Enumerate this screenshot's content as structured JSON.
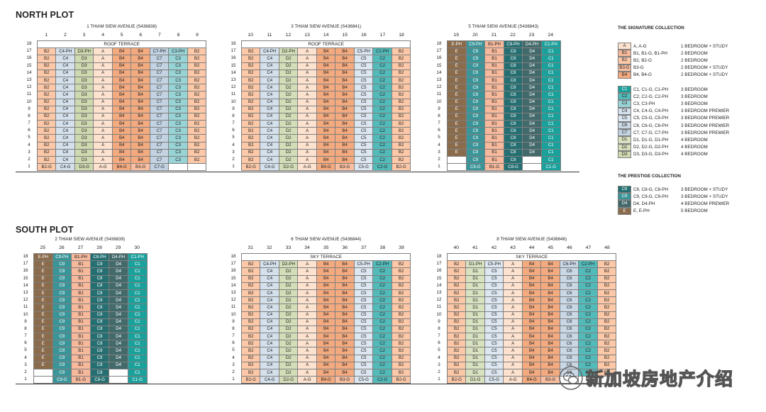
{
  "north_title": "NORTH PLOT",
  "south_title": "SOUTH PLOT",
  "colors": {
    "A": "#fde2cf",
    "B1": "#f7b99c",
    "B2": "#fcc8a7",
    "B3": "#f9bfa0",
    "B4": "#f4aa7f",
    "C1": "#1aa19c",
    "C2": "#52bbba",
    "C3": "#98d3d6",
    "C4": "#d4e1ec",
    "C5": "#dce7f1",
    "C6": "#cad8e6",
    "C7": "#c3d3e3",
    "D1": "#d8e2c0",
    "D2": "#d3deb8",
    "D3": "#cfd9b0",
    "C8": "#256f72",
    "C9": "#3a9599",
    "D4": "#436a6b",
    "E": "#8a6b4b",
    "T": "#ffffff"
  },
  "blocks": [
    {
      "id": "block-1",
      "address": "1 THIAM SIEW AVENUE (S436838)",
      "stacks": [
        "1",
        "2",
        "3",
        "4",
        "5",
        "6",
        "7",
        "8",
        "9"
      ],
      "terrace": "ROOF TERRACE",
      "top_row": [
        "B2",
        "C4-PH",
        "D3-PH",
        "A",
        "B4",
        "B4",
        "C7-PH",
        "C3-PH",
        "B2"
      ],
      "body": [
        "B2",
        "C4",
        "D3",
        "A",
        "B4",
        "B4",
        "C7",
        "C3",
        "B2"
      ],
      "body_floors": [
        16,
        15,
        14,
        13,
        12,
        11,
        10,
        9,
        8,
        7,
        6,
        5,
        4,
        3,
        2
      ],
      "row2_blank": [],
      "ground": [
        "B2-G",
        "C4-G",
        "D3-G",
        "A-G",
        "B4-G",
        "B3-G",
        "C7-G",
        "",
        ""
      ]
    },
    {
      "id": "block-3",
      "address": "3 THIAM SIEW AVENUE (S436841)",
      "stacks": [
        "10",
        "11",
        "12",
        "13",
        "14",
        "15",
        "16",
        "17",
        "18"
      ],
      "terrace": "ROOF TERRACE",
      "top_row": [
        "B2",
        "C4-PH",
        "D2-PH",
        "A",
        "B4",
        "B4",
        "C5-PH",
        "C2-PH",
        "B2"
      ],
      "body": [
        "B2",
        "C4",
        "D2",
        "A",
        "B4",
        "B4",
        "C5",
        "C2",
        "B2"
      ],
      "body_floors": [
        16,
        15,
        14,
        13,
        12,
        11,
        10,
        9,
        8,
        7,
        6,
        5,
        4,
        3,
        2
      ],
      "row2_blank": [],
      "ground": [
        "B2-G",
        "C4-G",
        "D2-G",
        "A-G",
        "B4-G",
        "B3-G",
        "C5-G",
        "C2-G",
        "B2-G"
      ]
    },
    {
      "id": "block-5",
      "address": "5 THIAM SIEW AVENUE (S436843)",
      "stacks": [
        "19",
        "20",
        "21",
        "22",
        "23",
        "24"
      ],
      "terrace": "",
      "row18": [
        "E-PH",
        "C9-PH",
        "B1-PH",
        "C8-PH",
        "D4-PH",
        "C1-PH"
      ],
      "top_row": [
        "E",
        "C9",
        "B1",
        "C8",
        "D4",
        "C1"
      ],
      "body": [
        "E",
        "C9",
        "B1",
        "C8",
        "D4",
        "C1"
      ],
      "body_floors": [
        16,
        15,
        14,
        13,
        12,
        11,
        10,
        9,
        8,
        7,
        6,
        5,
        4,
        3
      ],
      "row2": [
        "",
        "C9",
        "B1",
        "C8",
        "",
        "C1"
      ],
      "ground": [
        "",
        "C9-G",
        "B1-G",
        "C8-G",
        "",
        "C1-G"
      ]
    },
    {
      "id": "block-2",
      "address": "2 THIAM SIEW AVENUE (S436839)",
      "stacks": [
        "25",
        "26",
        "27",
        "28",
        "29",
        "30"
      ],
      "terrace": "",
      "row18": [
        "E-PH",
        "C9-PH",
        "B1-PH",
        "C8-PH",
        "D4-PH",
        "C1-PH"
      ],
      "top_row": [
        "E",
        "C9",
        "B1",
        "C8",
        "D4",
        "C1"
      ],
      "body": [
        "E",
        "C9",
        "B1",
        "C8",
        "D4",
        "C1"
      ],
      "body_floors": [
        16,
        15,
        14,
        13,
        12,
        11,
        10,
        9,
        8,
        7,
        6,
        5,
        4,
        3
      ],
      "row2": [
        "",
        "C9",
        "B1",
        "C8",
        "",
        "C1"
      ],
      "ground": [
        "",
        "C9-G",
        "B1-G",
        "C8-G",
        "",
        "C1-G"
      ]
    },
    {
      "id": "block-6",
      "address": "6 THIAM SIEW AVENUE (S436844)",
      "stacks": [
        "31",
        "32",
        "33",
        "34",
        "35",
        "36",
        "37",
        "38",
        "39"
      ],
      "terrace": "SKY TERRACE",
      "top_row": [
        "B2",
        "C4-PH",
        "D2-PH",
        "A",
        "B4",
        "B4",
        "C5-PH",
        "C2-PH",
        "B2"
      ],
      "body": [
        "B2",
        "C4",
        "D2",
        "A",
        "B4",
        "B4",
        "C5",
        "C2",
        "B2"
      ],
      "body_floors": [
        16,
        15,
        14,
        13,
        12,
        11,
        10,
        9,
        8,
        7,
        6,
        5,
        4,
        3,
        2
      ],
      "row2_blank": [],
      "ground": [
        "B2-G",
        "C4-G",
        "D2-G",
        "A-G",
        "B4-G",
        "B3-G",
        "C5-G",
        "C2-G",
        "B2-G"
      ]
    },
    {
      "id": "block-8",
      "address": "8 THIAM SIEW AVENUE (S436846)",
      "stacks": [
        "40",
        "41",
        "42",
        "43",
        "44",
        "45",
        "46",
        "47",
        "48"
      ],
      "terrace": "SKY TERRACE",
      "top_row": [
        "B2",
        "D1-PH",
        "C5-PH",
        "A",
        "B4",
        "B4",
        "C6-PH",
        "C2-PH",
        "B2"
      ],
      "body": [
        "B2",
        "D1",
        "C5",
        "A",
        "B4",
        "B4",
        "C6",
        "C2",
        "B2"
      ],
      "body_floors": [
        16,
        15,
        14,
        13,
        12,
        11,
        10,
        9,
        8,
        7,
        6,
        5,
        4,
        3,
        2
      ],
      "row2_blank": [],
      "ground": [
        "B2-G",
        "D1-G",
        "C5-G",
        "A-G",
        "B4-G",
        "B3-G",
        "",
        "",
        ""
      ]
    }
  ],
  "legend": {
    "signature_title": "THE SIGNATURE COLLECTION",
    "prestige_title": "THE PRESTIGE COLLECTION",
    "signature_a": [
      {
        "code": "A",
        "codes": "A, A-G",
        "desc": "1 BEDROOM + STUDY"
      },
      {
        "code": "B1",
        "codes": "B1, B1-G, B1-PH",
        "desc": "2 BEDROOM"
      },
      {
        "code": "B2",
        "codes": "B2, B2-G",
        "desc": "2 BEDROOM"
      },
      {
        "code": "B3-G",
        "key": "B3",
        "codes": "B3-G",
        "desc": "2 BEDROOM + STUDY"
      },
      {
        "code": "B4",
        "codes": "B4, B4-G",
        "desc": "2 BEDROOM + STUDY"
      }
    ],
    "signature_b": [
      {
        "code": "C1",
        "codes": "C1, C1-G, C1-PH",
        "desc": "3 BEDROOM"
      },
      {
        "code": "C2",
        "codes": "C2, C2-G, C2-PH",
        "desc": "3 BEDROOM"
      },
      {
        "code": "C3",
        "codes": "C3, C3-PH",
        "desc": "3 BEDROOM"
      },
      {
        "code": "C4",
        "codes": "C4, C4-G, C4-PH",
        "desc": "3 BEDROOM PREMIER"
      },
      {
        "code": "C5",
        "codes": "C5, C5-G, C5-PH",
        "desc": "3 BEDROOM PREMIER"
      },
      {
        "code": "C6",
        "codes": "C6, C6-G, C6-PH",
        "desc": "3 BEDROOM PREMIER"
      },
      {
        "code": "C7",
        "codes": "C7, C7-G, C7-PH",
        "desc": "3 BEDROOM PREMIER"
      },
      {
        "code": "D1",
        "codes": "D1, D1-G, D1-PH",
        "desc": "4 BEDROOM"
      },
      {
        "code": "D2",
        "codes": "D2, D2-G, D2-PH",
        "desc": "4 BEDROOM"
      },
      {
        "code": "D3",
        "codes": "D3, D3-G, D3-PH",
        "desc": "4 BEDROOM"
      }
    ],
    "prestige": [
      {
        "code": "C8",
        "codes": "C8, C8-G, C8-PH",
        "desc": "3 BEDROOM + STUDY"
      },
      {
        "code": "C9",
        "codes": "C9, C9-G, C9-PH",
        "desc": "3 BEDROOM + STUDY"
      },
      {
        "code": "D4",
        "codes": "D4, D4-PH",
        "desc": "4 BEDROOM PREMIER"
      },
      {
        "code": "E",
        "codes": "E, E-PH",
        "desc": "5 BEDROOM"
      }
    ]
  },
  "watermark": "新加坡房地产介绍",
  "watermark_icon": "wechat-icon"
}
